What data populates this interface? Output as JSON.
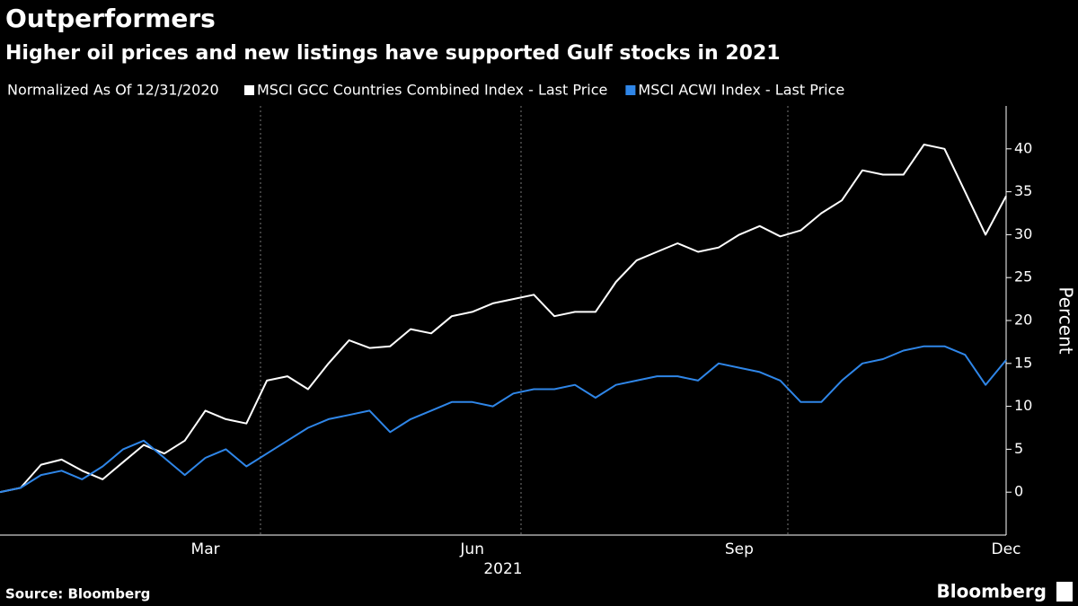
{
  "chart_data": {
    "type": "line",
    "title": "Outperformers",
    "subtitle": "Higher oil prices and new listings have supported Gulf stocks in 2021",
    "legend_title": "Normalized As Of 12/31/2020",
    "y_label": "Percent",
    "x_label": "2021",
    "source": "Source: Bloomberg",
    "brand": "Bloomberg",
    "categories": [
      null,
      null,
      null,
      null,
      null,
      null,
      null,
      null,
      null,
      null,
      "Mar",
      null,
      null,
      null,
      null,
      null,
      null,
      null,
      null,
      null,
      null,
      null,
      null,
      "Jun",
      null,
      null,
      null,
      null,
      null,
      null,
      null,
      null,
      null,
      null,
      null,
      null,
      "Sep",
      null,
      null,
      null,
      null,
      null,
      null,
      null,
      null,
      null,
      null,
      null,
      null,
      "Dec"
    ],
    "series": [
      {
        "name": "MSCI GCC Countries Combined Index - Last Price",
        "color": "#ffffff",
        "values": [
          0,
          0.5,
          3.2,
          3.8,
          2.5,
          1.5,
          3.5,
          5.5,
          4.5,
          6,
          9.5,
          8.5,
          8,
          13,
          13.5,
          12,
          15,
          17.7,
          16.8,
          17,
          19,
          18.5,
          20.5,
          21,
          22,
          22.5,
          23,
          20.5,
          21,
          21,
          24.5,
          27,
          28,
          29,
          28,
          28.5,
          30,
          31,
          29.8,
          30.5,
          32.5,
          34,
          37.5,
          37,
          37,
          40.5,
          40,
          35,
          30,
          34.5
        ]
      },
      {
        "name": "MSCI ACWI Index - Last Price",
        "color": "#2f86e8",
        "values": [
          0,
          0.5,
          2,
          2.5,
          1.5,
          3,
          5,
          6,
          4,
          2,
          4,
          5,
          3,
          4.5,
          6,
          7.5,
          8.5,
          9,
          9.5,
          7,
          8.5,
          9.5,
          10.5,
          10.5,
          10,
          11.5,
          12,
          12,
          12.5,
          11,
          12.5,
          13,
          13.5,
          13.5,
          13,
          15,
          14.5,
          14,
          13,
          10.5,
          10.5,
          13,
          15,
          15.5,
          16.5,
          17,
          17,
          16,
          12.5,
          15.4
        ]
      }
    ],
    "ylim": [
      -5,
      45
    ],
    "yticks": [
      0,
      5,
      10,
      15,
      20,
      25,
      30,
      35,
      40
    ],
    "grid": false
  }
}
